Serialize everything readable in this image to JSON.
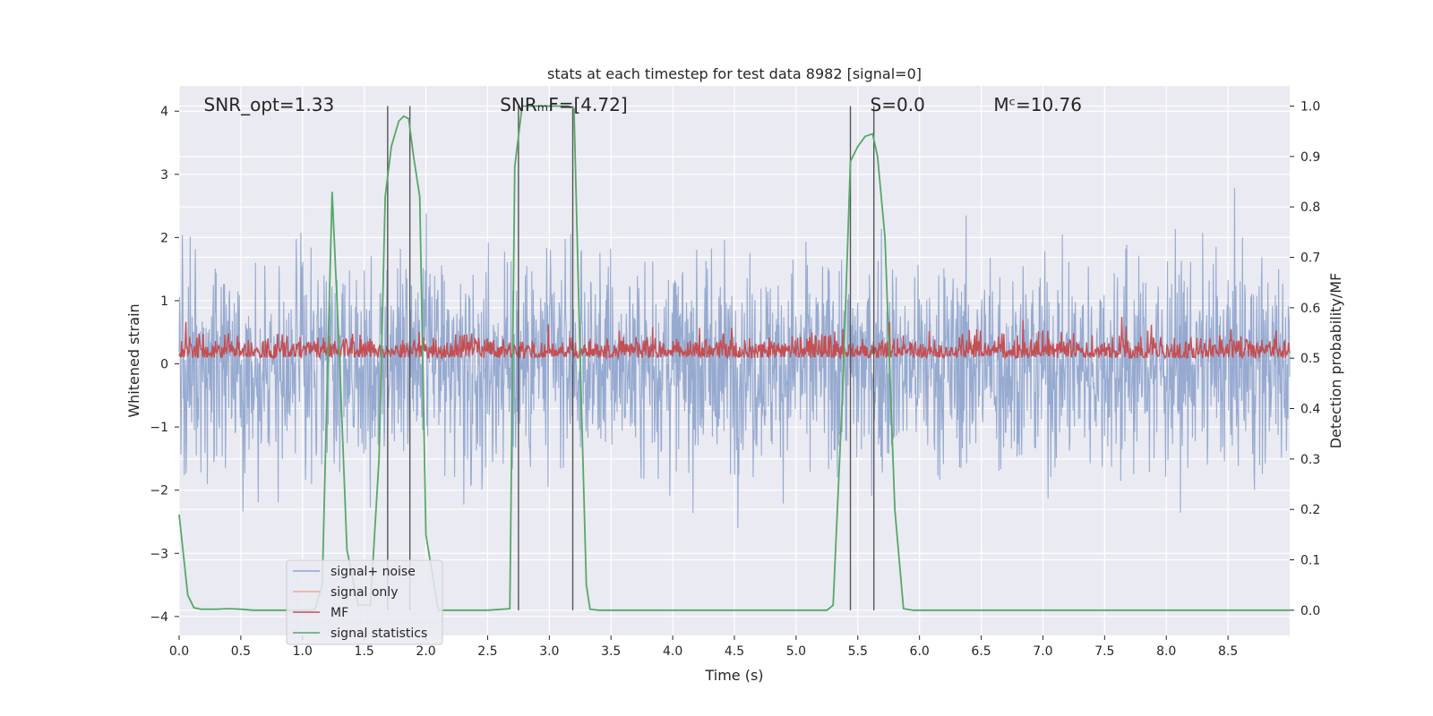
{
  "chart_data": {
    "type": "line",
    "title": "stats at each timestep for test data 8982 [signal=0]",
    "xlabel": "Time (s)",
    "ylabel": "Whitened strain",
    "ylabel_right": "Detection probability/MF",
    "xlim": [
      0.0,
      9.0
    ],
    "ylim": [
      -4.3,
      4.4
    ],
    "ylim_right": [
      -0.05,
      1.04
    ],
    "x_ticks": [
      "0.0",
      "0.5",
      "1.0",
      "1.5",
      "2.0",
      "2.5",
      "3.0",
      "3.5",
      "4.0",
      "4.5",
      "5.0",
      "5.5",
      "6.0",
      "6.5",
      "7.0",
      "7.5",
      "8.0",
      "8.5"
    ],
    "y_ticks": [
      "−4",
      "−3",
      "−2",
      "−1",
      "0",
      "1",
      "2",
      "3",
      "4"
    ],
    "y_right_ticks": [
      "0.0",
      "0.1",
      "0.2",
      "0.3",
      "0.4",
      "0.5",
      "0.6",
      "0.7",
      "0.8",
      "0.9",
      "1.0"
    ],
    "grid": true,
    "legend_position": "lower-left",
    "annotations": [
      {
        "id": "snr-opt",
        "x": 0.2,
        "text": "SNR_opt=1.33"
      },
      {
        "id": "snr-mf",
        "x": 2.6,
        "text": "SNRₘF=[4.72]"
      },
      {
        "id": "s-value",
        "x": 5.6,
        "text": "S=0.0"
      },
      {
        "id": "mc-value",
        "x": 6.6,
        "text": "Mᶜ=10.76"
      }
    ],
    "vertical_lines_x": [
      1.69,
      1.87,
      2.75,
      3.19,
      5.44,
      5.63
    ],
    "series": [
      {
        "name": "signal+ noise",
        "color": "#8da3cc",
        "style": "noise",
        "amplitude_range": [
          -3.9,
          4.0
        ]
      },
      {
        "name": "signal only",
        "color": "#e8a98a",
        "values": []
      },
      {
        "name": "MF",
        "color": "#c44e52",
        "style": "mf",
        "right_axis": true,
        "baseline": 0.5,
        "range": [
          0.49,
          0.62
        ]
      },
      {
        "name": "signal statistics",
        "color": "#55a868",
        "right_axis": true,
        "x": [
          0.0,
          0.07,
          0.12,
          0.18,
          0.3,
          0.4,
          0.5,
          0.6,
          0.8,
          1.0,
          1.1,
          1.16,
          1.2,
          1.24,
          1.3,
          1.36,
          1.45,
          1.55,
          1.62,
          1.67,
          1.72,
          1.78,
          1.82,
          1.86,
          1.9,
          1.95,
          2.0,
          2.1,
          2.3,
          2.5,
          2.68,
          2.72,
          2.78,
          2.85,
          3.0,
          3.15,
          3.2,
          3.25,
          3.3,
          3.33,
          3.4,
          3.6,
          4.0,
          4.5,
          5.0,
          5.25,
          5.3,
          5.38,
          5.44,
          5.5,
          5.56,
          5.62,
          5.66,
          5.72,
          5.8,
          5.87,
          5.95,
          6.5,
          7.0,
          7.5,
          8.0,
          8.5,
          9.0
        ],
        "values": [
          0.19,
          0.03,
          0.005,
          0.002,
          0.002,
          0.003,
          0.002,
          0.0,
          0.0,
          0.0,
          0.001,
          0.05,
          0.45,
          0.83,
          0.5,
          0.12,
          0.01,
          0.01,
          0.3,
          0.82,
          0.92,
          0.97,
          0.98,
          0.975,
          0.9,
          0.82,
          0.15,
          0.0,
          0.0,
          0.0,
          0.003,
          0.88,
          1.0,
          1.0,
          1.0,
          1.0,
          0.995,
          0.5,
          0.05,
          0.002,
          0.0,
          0.0,
          0.0,
          0.0,
          0.0,
          0.0,
          0.01,
          0.45,
          0.89,
          0.92,
          0.94,
          0.945,
          0.9,
          0.74,
          0.2,
          0.003,
          0.0,
          0.0,
          0.0,
          0.0,
          0.0,
          0.0,
          0.0
        ]
      }
    ]
  }
}
